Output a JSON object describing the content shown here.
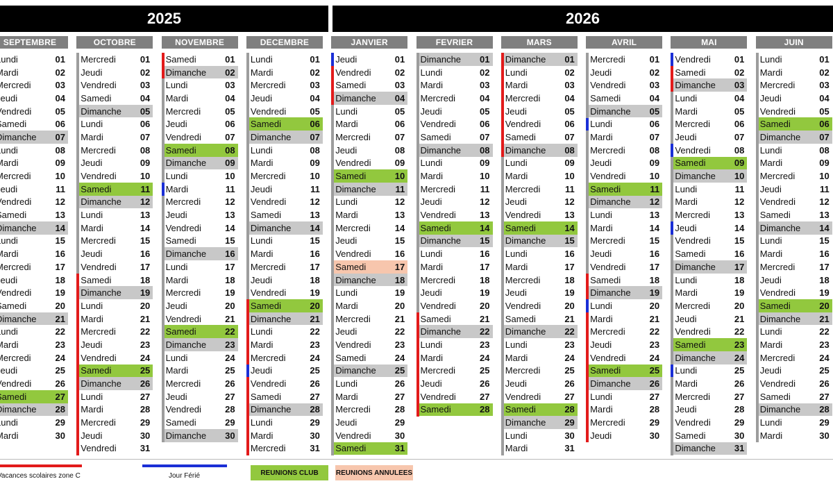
{
  "years": [
    {
      "label": "2025"
    },
    {
      "label": "2026"
    }
  ],
  "colors": {
    "vacances": "#e21b1b",
    "ferie": "#1b2fd6",
    "club": "#92c83e",
    "annulee": "#f7c6ad",
    "dimanche": "#c8c8c8"
  },
  "months": [
    {
      "name": "SEPTEMBRE",
      "start": "Lundi",
      "days": 30,
      "club": [
        27
      ],
      "cancel": [],
      "red": [],
      "blue": []
    },
    {
      "name": "OCTOBRE",
      "start": "Mercredi",
      "days": 31,
      "club": [
        11,
        25
      ],
      "cancel": [],
      "red": [
        18,
        31
      ],
      "blue": []
    },
    {
      "name": "NOVEMBRE",
      "start": "Samedi",
      "days": 30,
      "club": [
        8,
        22
      ],
      "cancel": [],
      "red": [
        1,
        2
      ],
      "blue": [
        11
      ]
    },
    {
      "name": "DECEMBRE",
      "start": "Lundi",
      "days": 31,
      "club": [
        6,
        20
      ],
      "cancel": [],
      "red": [
        20,
        31
      ],
      "blue": [
        25
      ]
    },
    {
      "name": "JANVIER",
      "start": "Jeudi",
      "days": 31,
      "club": [
        10,
        31
      ],
      "cancel": [
        17
      ],
      "red": [
        1,
        4
      ],
      "blue": [
        1
      ]
    },
    {
      "name": "FEVRIER",
      "start": "Dimanche",
      "days": 28,
      "club": [
        14,
        28
      ],
      "cancel": [],
      "red": [
        21,
        28
      ],
      "blue": []
    },
    {
      "name": "MARS",
      "start": "Dimanche",
      "days": 31,
      "club": [
        14,
        28
      ],
      "cancel": [],
      "red": [
        1,
        8
      ],
      "blue": []
    },
    {
      "name": "AVRIL",
      "start": "Mercredi",
      "days": 30,
      "club": [
        11,
        25
      ],
      "cancel": [],
      "red": [
        18,
        30
      ],
      "blue": [
        6,
        20
      ]
    },
    {
      "name": "MAI",
      "start": "Vendredi",
      "days": 31,
      "club": [
        9,
        23
      ],
      "cancel": [],
      "red": [
        1,
        3
      ],
      "blue": [
        1,
        8,
        14,
        25
      ]
    },
    {
      "name": "JUIN",
      "start": "Lundi",
      "days": 30,
      "club": [
        6,
        20
      ],
      "cancel": [],
      "red": [],
      "blue": []
    }
  ],
  "legend": {
    "vacances": "Vacances scolaires zone C",
    "ferie": "Jour Férié",
    "club": "REUNIONS CLUB",
    "annulee": "REUNIONS ANNULEES"
  }
}
